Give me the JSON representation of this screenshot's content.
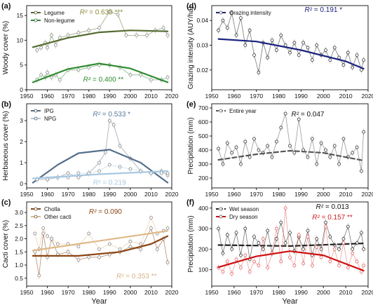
{
  "chart_data": [
    {
      "type": "line",
      "panel_label": "(a)",
      "ylabel": "Woody cover (%)",
      "xlim": [
        1950,
        2020
      ],
      "ylim": [
        0,
        17
      ],
      "xticks": [
        "1950",
        "1960",
        "1970",
        "1980",
        "1990",
        "2000",
        "2010",
        "2020"
      ],
      "yticks": [
        "0",
        "5",
        "10",
        "15"
      ],
      "annotations": [
        {
          "text": "R² = 0.630 ***",
          "color": "#8a8a3a",
          "x": 1986,
          "y": 15.2
        },
        {
          "text": "R² = 0.400 **",
          "color": "#2e8b2e",
          "x": 1987,
          "y": 1.6
        }
      ],
      "series": [
        {
          "name": "Legume",
          "color": "#556b2f",
          "marker": "#888888",
          "x": [
            1955,
            1957,
            1959,
            1960,
            1962,
            1964,
            1966,
            1970,
            1975,
            1980,
            1985,
            1990,
            1994,
            1998,
            2003,
            2008,
            2012,
            2016,
            2018
          ],
          "y": [
            8.0,
            8.5,
            9.5,
            8.5,
            11.0,
            9.0,
            10.5,
            11.0,
            11.5,
            12.0,
            12.5,
            15.8,
            15.2,
            11.0,
            11.0,
            11.0,
            12.0,
            12.5,
            11.0
          ],
          "trend": {
            "x": [
              1953,
              1970,
              1985,
              2000,
              2018
            ],
            "y": [
              8.6,
              10.5,
              11.6,
              12.0,
              11.8
            ]
          }
        },
        {
          "name": "Non-legume",
          "color": "#2e8b2e",
          "marker": "#888888",
          "x": [
            1955,
            1957,
            1959,
            1960,
            1962,
            1964,
            1966,
            1970,
            1975,
            1980,
            1985,
            1990,
            1995,
            2000,
            2005,
            2010,
            2015,
            2018
          ],
          "y": [
            2.0,
            3.0,
            2.5,
            3.5,
            2.5,
            3.0,
            2.0,
            4.0,
            4.0,
            4.5,
            5.0,
            5.0,
            4.5,
            3.0,
            3.0,
            2.0,
            2.0,
            2.5
          ],
          "trend": {
            "x": [
              1953,
              1970,
              1985,
              2000,
              2018
            ],
            "y": [
              1.5,
              4.2,
              5.3,
              4.3,
              1.5
            ]
          }
        }
      ]
    },
    {
      "type": "line",
      "panel_label": "(b)",
      "ylabel": "Herbaceous cover (%)",
      "xlim": [
        1950,
        2020
      ],
      "ylim": [
        -0.2,
        3.8
      ],
      "xticks": [
        "1950",
        "1960",
        "1970",
        "1980",
        "1990",
        "2000",
        "2010",
        "2020"
      ],
      "yticks": [
        "0",
        "1",
        "2",
        "3"
      ],
      "annotations": [
        {
          "text": "R² = 0.533 *",
          "color": "#5a7a9a",
          "x": 1991,
          "y": 3.2
        },
        {
          "text": "R² = 0.219",
          "color": "#a9c8e0",
          "x": 1990,
          "y": -0.05
        }
      ],
      "series": [
        {
          "name": "IPG",
          "color": "#556f8a",
          "marker": "#888888",
          "x": [
            1955,
            1960,
            1965,
            1970,
            1975,
            1980,
            1985,
            1988,
            1990,
            1992,
            1995,
            2000,
            2005,
            2010,
            2015,
            2018
          ],
          "y": [
            0.2,
            0.2,
            0.3,
            0.5,
            0.3,
            0.5,
            1.0,
            1.5,
            3.0,
            2.8,
            1.8,
            1.2,
            0.6,
            0.5,
            0.6,
            0.4
          ],
          "trend": {
            "x": [
              1953,
              1965,
              1975,
              1990,
              2005,
              2018
            ],
            "y": [
              0.05,
              0.9,
              1.45,
              1.62,
              1.0,
              0.05
            ]
          }
        },
        {
          "name": "NPG",
          "color": "#a9c8e0",
          "marker": "#888888",
          "x": [
            1955,
            1960,
            1965,
            1970,
            1975,
            1980,
            1985,
            1990,
            1995,
            2000,
            2005,
            2010,
            2015,
            2018
          ],
          "y": [
            0.2,
            0.2,
            0.3,
            0.3,
            0.5,
            0.5,
            0.6,
            0.9,
            0.8,
            0.7,
            0.6,
            0.5,
            0.5,
            0.5
          ],
          "trend": {
            "x": [
              1953,
              1985,
              2018
            ],
            "y": [
              0.25,
              0.45,
              0.6
            ]
          }
        }
      ]
    },
    {
      "type": "line",
      "panel_label": "(c)",
      "ylabel": "Cacti cover (%)",
      "xlim": [
        1950,
        2020
      ],
      "ylim": [
        0.2,
        3.4
      ],
      "xticks": [
        "1950",
        "1960",
        "1970",
        "1980",
        "1990",
        "2000",
        "2010",
        "2020"
      ],
      "yticks": [
        "0.5",
        "1.0",
        "1.5",
        "2.0",
        "2.5",
        "3.0"
      ],
      "xlabel": "Year",
      "annotations": [
        {
          "text": "R² = 0.090",
          "color": "#8b4513",
          "x": 1988,
          "y": 2.95
        },
        {
          "text": "R² = 0.353 **",
          "color": "#d8b48a",
          "x": 2003,
          "y": 0.5
        }
      ],
      "series": [
        {
          "name": "Cholla",
          "color": "#8b4513",
          "marker": "#888888",
          "x": [
            1954,
            1956,
            1958,
            1960,
            1962,
            1965,
            1970,
            1975,
            1980,
            1985,
            1990,
            1995,
            2000,
            2005,
            2010,
            2013,
            2016,
            2018
          ],
          "y": [
            1.5,
            0.6,
            2.2,
            1.3,
            2.0,
            1.4,
            1.5,
            1.2,
            1.3,
            1.3,
            1.4,
            1.5,
            1.7,
            1.6,
            2.4,
            1.6,
            2.0,
            1.1
          ],
          "trend": {
            "x": [
              1953,
              1975,
              1995,
              2010,
              2018
            ],
            "y": [
              1.35,
              1.35,
              1.5,
              1.8,
              2.1
            ]
          }
        },
        {
          "name": "Other cacti",
          "color": "#deb887",
          "marker": "#888888",
          "x": [
            1954,
            1956,
            1958,
            1960,
            1962,
            1965,
            1970,
            1975,
            1980,
            1985,
            1990,
            1995,
            2000,
            2005,
            2010,
            2013,
            2016,
            2018
          ],
          "y": [
            2.2,
            1.6,
            2.4,
            2.1,
            2.0,
            1.8,
            1.8,
            1.7,
            2.2,
            1.6,
            1.8,
            1.6,
            1.9,
            1.8,
            2.8,
            2.2,
            2.3,
            2.4
          ],
          "trend": {
            "x": [
              1953,
              2018
            ],
            "y": [
              1.55,
              2.3
            ]
          }
        }
      ]
    },
    {
      "type": "line",
      "panel_label": "(d)",
      "ylabel": "Grazing intensity (AUY/ha)",
      "xlim": [
        1950,
        2020
      ],
      "ylim": [
        0.012,
        0.046
      ],
      "xticks": [
        "1950",
        "1960",
        "1970",
        "1980",
        "1990",
        "2000",
        "2010",
        "2020"
      ],
      "yticks": [
        "0.02",
        "0.03",
        "0.04"
      ],
      "annotations": [
        {
          "text": "R² = 0.191 *",
          "color": "#1a237e",
          "x": 2000,
          "y": 0.0435
        }
      ],
      "series": [
        {
          "name": "Grazing intensity",
          "color": "#222222",
          "marker": "#333333",
          "x": [
            1953,
            1955,
            1957,
            1959,
            1961,
            1963,
            1965,
            1967,
            1969,
            1971,
            1973,
            1975,
            1977,
            1979,
            1981,
            1983,
            1985,
            1987,
            1989,
            1991,
            1993,
            1995,
            1997,
            1999,
            2001,
            2003,
            2005,
            2007,
            2009,
            2011,
            2013,
            2015,
            2017,
            2018
          ],
          "y": [
            0.036,
            0.04,
            0.037,
            0.043,
            0.034,
            0.041,
            0.03,
            0.036,
            0.026,
            0.019,
            0.031,
            0.025,
            0.032,
            0.028,
            0.034,
            0.03,
            0.027,
            0.031,
            0.026,
            0.031,
            0.029,
            0.024,
            0.03,
            0.026,
            0.028,
            0.024,
            0.029,
            0.025,
            0.022,
            0.027,
            0.021,
            0.026,
            0.02,
            0.024
          ],
          "trend": {
            "x": [
              1953,
              1970,
              1990,
              2010,
              2018
            ],
            "y": [
              0.0325,
              0.0315,
              0.028,
              0.0235,
              0.0205
            ],
            "color": "#1a237e"
          }
        }
      ]
    },
    {
      "type": "line",
      "panel_label": "(e)",
      "ylabel": "Precipitation (mm)",
      "xlim": [
        1950,
        2020
      ],
      "ylim": [
        130,
        730
      ],
      "xticks": [
        "1950",
        "1960",
        "1970",
        "1980",
        "1990",
        "2000",
        "2010",
        "2020"
      ],
      "yticks": [
        "200",
        "300",
        "400",
        "500",
        "600",
        "700"
      ],
      "annotations": [
        {
          "text": "R² = 0.047",
          "color": "#111111",
          "x": 1993,
          "y": 640
        }
      ],
      "series": [
        {
          "name": "Entire year",
          "color": "#555555",
          "marker": "#333333",
          "x": [
            1953,
            1955,
            1957,
            1959,
            1961,
            1963,
            1965,
            1967,
            1969,
            1971,
            1973,
            1975,
            1977,
            1979,
            1981,
            1983,
            1985,
            1987,
            1989,
            1991,
            1993,
            1995,
            1997,
            1999,
            2001,
            2003,
            2005,
            2007,
            2009,
            2011,
            2013,
            2015,
            2017,
            2018
          ],
          "y": [
            410,
            300,
            450,
            380,
            420,
            300,
            460,
            350,
            480,
            400,
            380,
            430,
            350,
            460,
            560,
            660,
            430,
            380,
            620,
            400,
            350,
            480,
            300,
            450,
            400,
            350,
            430,
            300,
            480,
            350,
            380,
            420,
            250,
            530
          ],
          "trend": {
            "x": [
              1953,
              1970,
              1985,
              2000,
              2018
            ],
            "y": [
              330,
              370,
              395,
              380,
              325
            ],
            "dashed": true
          }
        }
      ]
    },
    {
      "type": "line",
      "panel_label": "(f)",
      "ylabel": "Precipitation (mm)",
      "xlim": [
        1950,
        2020
      ],
      "ylim": [
        20,
        430
      ],
      "xticks": [
        "1950",
        "1960",
        "1970",
        "1980",
        "1990",
        "2000",
        "2010",
        "2020"
      ],
      "yticks": [
        "100",
        "200",
        "300",
        "400"
      ],
      "xlabel": "Year",
      "annotations": [
        {
          "text": "R² = 0.013",
          "color": "#111111",
          "x": 2004,
          "y": 395
        },
        {
          "text": "R² = 0.157 **",
          "color": "#cc2222",
          "x": 2004,
          "y": 345
        }
      ],
      "series": [
        {
          "name": "Wet season",
          "color": "#222222",
          "marker": "#333333",
          "x": [
            1953,
            1955,
            1957,
            1959,
            1961,
            1963,
            1965,
            1967,
            1969,
            1971,
            1973,
            1975,
            1977,
            1979,
            1981,
            1983,
            1985,
            1987,
            1989,
            1991,
            1993,
            1995,
            1997,
            1999,
            2001,
            2003,
            2005,
            2007,
            2009,
            2011,
            2013,
            2015,
            2017,
            2018
          ],
          "y": [
            300,
            180,
            270,
            200,
            280,
            170,
            300,
            150,
            260,
            230,
            200,
            290,
            180,
            250,
            330,
            230,
            280,
            190,
            260,
            200,
            290,
            170,
            250,
            200,
            330,
            260,
            220,
            200,
            250,
            310,
            200,
            230,
            280,
            200
          ],
          "trend": {
            "x": [
              1953,
              1985,
              2018
            ],
            "y": [
              220,
              215,
              228
            ],
            "dashed": true
          }
        },
        {
          "name": "Dry season",
          "color": "#e06060",
          "marker": "#e06060",
          "x": [
            1953,
            1955,
            1957,
            1959,
            1961,
            1963,
            1965,
            1967,
            1969,
            1971,
            1973,
            1975,
            1977,
            1979,
            1981,
            1983,
            1985,
            1987,
            1989,
            1991,
            1993,
            1995,
            1997,
            1999,
            2001,
            2003,
            2005,
            2007,
            2009,
            2011,
            2013,
            2015,
            2017,
            2018
          ],
          "y": [
            110,
            90,
            140,
            80,
            150,
            110,
            170,
            90,
            140,
            120,
            250,
            110,
            180,
            300,
            140,
            400,
            160,
            120,
            270,
            130,
            260,
            120,
            210,
            160,
            310,
            140,
            200,
            120,
            230,
            110,
            180,
            140,
            90,
            120
          ],
          "trend": {
            "x": [
              1953,
              1970,
              1985,
              2000,
              2018
            ],
            "y": [
              112,
              165,
              190,
              170,
              95
            ],
            "color": "#cc1111"
          }
        }
      ]
    }
  ]
}
